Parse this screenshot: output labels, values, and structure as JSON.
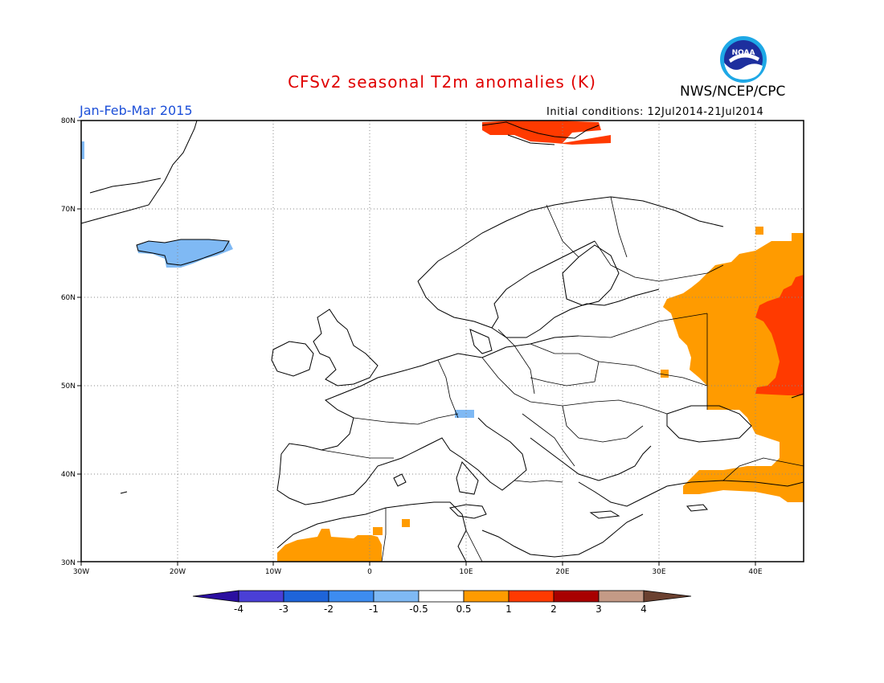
{
  "title": "CFSv2 seasonal T2m anomalies (K)",
  "agency": "NWS/NCEP/CPC",
  "logo_text": "NOAA",
  "period": "Jan-Feb-Mar 2015",
  "initial_conditions": "Initial conditions: 12Jul2014-21Jul2014",
  "map_extent": {
    "lon": [
      -30,
      45
    ],
    "lat": [
      30,
      80
    ]
  },
  "lat_labels": [
    "30N",
    "40N",
    "50N",
    "60N",
    "70N",
    "80N"
  ],
  "lon_labels": [
    "30W",
    "20W",
    "10W",
    "0",
    "10E",
    "20E",
    "30E",
    "40E"
  ],
  "colorbar": {
    "colors": [
      "#2b0fa0",
      "#4a3fd6",
      "#1e64d9",
      "#3d8cf0",
      "#7fb9f4",
      "#ffffff",
      "#ff9b00",
      "#ff3a00",
      "#a80000",
      "#c49a86",
      "#6b4130"
    ],
    "labels": [
      "-4",
      "-3",
      "-2",
      "-1",
      "-0.5",
      "0.5",
      "1",
      "2",
      "3",
      "4"
    ]
  }
}
